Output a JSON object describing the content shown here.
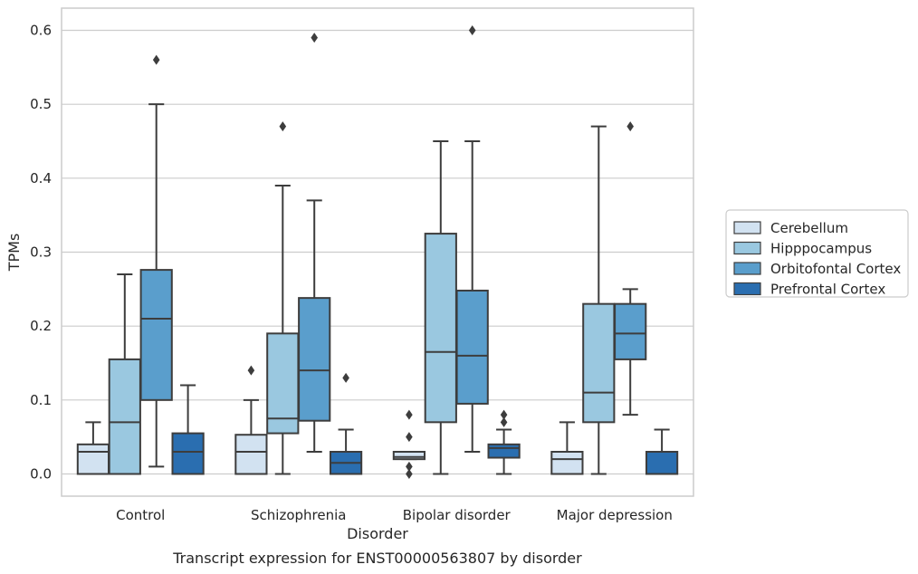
{
  "caption": "Transcript expression for ENST00000563807 by disorder",
  "chart_data": {
    "type": "box",
    "title": "",
    "xlabel": "Disorder",
    "ylabel": "TPMs",
    "ylim": [
      -0.03,
      0.63
    ],
    "yticks": [
      0.0,
      0.1,
      0.2,
      0.3,
      0.4,
      0.5,
      0.6
    ],
    "ytick_labels": [
      "0.0",
      "0.1",
      "0.2",
      "0.3",
      "0.4",
      "0.5",
      "0.6"
    ],
    "grid": "horizontal",
    "legend_position": "right",
    "categories": [
      "Control",
      "Schizophrenia",
      "Bipolar disorder",
      "Major depression"
    ],
    "series": [
      {
        "name": "Cerebellum",
        "color": "#d2e2f1",
        "boxes": [
          {
            "whislo": 0.0,
            "q1": 0.0,
            "med": 0.03,
            "q3": 0.04,
            "whishi": 0.07,
            "fliers": []
          },
          {
            "whislo": 0.0,
            "q1": 0.0,
            "med": 0.03,
            "q3": 0.053,
            "whishi": 0.1,
            "fliers": [
              0.14
            ]
          },
          {
            "whislo": 0.02,
            "q1": 0.02,
            "med": 0.023,
            "q3": 0.03,
            "whishi": 0.03,
            "fliers": [
              0.0,
              0.01,
              0.05,
              0.08
            ]
          },
          {
            "whislo": 0.0,
            "q1": 0.0,
            "med": 0.02,
            "q3": 0.03,
            "whishi": 0.07,
            "fliers": []
          }
        ]
      },
      {
        "name": "Hipppocampus",
        "color": "#9ac8e0",
        "boxes": [
          {
            "whislo": 0.0,
            "q1": 0.0,
            "med": 0.07,
            "q3": 0.155,
            "whishi": 0.27,
            "fliers": []
          },
          {
            "whislo": 0.0,
            "q1": 0.055,
            "med": 0.075,
            "q3": 0.19,
            "whishi": 0.39,
            "fliers": [
              0.47
            ]
          },
          {
            "whislo": 0.0,
            "q1": 0.07,
            "med": 0.165,
            "q3": 0.325,
            "whishi": 0.45,
            "fliers": []
          },
          {
            "whislo": 0.0,
            "q1": 0.07,
            "med": 0.11,
            "q3": 0.23,
            "whishi": 0.47,
            "fliers": []
          }
        ]
      },
      {
        "name": "Orbitofontal Cortex",
        "color": "#5a9ecc",
        "boxes": [
          {
            "whislo": 0.01,
            "q1": 0.1,
            "med": 0.21,
            "q3": 0.276,
            "whishi": 0.5,
            "fliers": [
              0.56
            ]
          },
          {
            "whislo": 0.03,
            "q1": 0.072,
            "med": 0.14,
            "q3": 0.238,
            "whishi": 0.37,
            "fliers": [
              0.59
            ]
          },
          {
            "whislo": 0.03,
            "q1": 0.095,
            "med": 0.16,
            "q3": 0.248,
            "whishi": 0.45,
            "fliers": [
              0.6
            ]
          },
          {
            "whislo": 0.08,
            "q1": 0.155,
            "med": 0.19,
            "q3": 0.23,
            "whishi": 0.25,
            "fliers": [
              0.47
            ]
          }
        ]
      },
      {
        "name": "Prefrontal Cortex",
        "color": "#2a6eb0",
        "boxes": [
          {
            "whislo": 0.0,
            "q1": 0.0,
            "med": 0.03,
            "q3": 0.055,
            "whishi": 0.12,
            "fliers": []
          },
          {
            "whislo": 0.0,
            "q1": 0.0,
            "med": 0.015,
            "q3": 0.03,
            "whishi": 0.06,
            "fliers": [
              0.13
            ]
          },
          {
            "whislo": 0.0,
            "q1": 0.022,
            "med": 0.035,
            "q3": 0.04,
            "whishi": 0.06,
            "fliers": [
              0.07,
              0.08
            ]
          },
          {
            "whislo": 0.0,
            "q1": 0.0,
            "med": 0.0,
            "q3": 0.03,
            "whishi": 0.06,
            "fliers": []
          }
        ]
      }
    ]
  }
}
